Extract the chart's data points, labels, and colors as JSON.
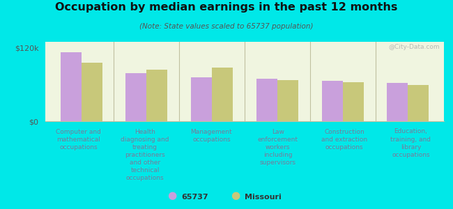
{
  "title": "Occupation by median earnings in the past 12 months",
  "subtitle": "(Note: State values scaled to 65737 population)",
  "background_outer": "#00e8e8",
  "background_inner_top": "#f8f8f0",
  "background_inner_bottom": "#e8f0d0",
  "categories": [
    "Computer and\nmathematical\noccupations",
    "Health\ndiagnosing and\ntreating\npractitioners\nand other\ntechnical\noccupations",
    "Management\noccupations",
    "Law\nenforcement\nworkers\nincluding\nsupervisors",
    "Construction\nand extraction\noccupations",
    "Education,\ntraining, and\nlibrary\noccupations"
  ],
  "values_65737": [
    113000,
    79000,
    72000,
    69000,
    66000,
    63000
  ],
  "values_missouri": [
    96000,
    84000,
    88000,
    67000,
    64000,
    59000
  ],
  "color_65737": "#c9a0dc",
  "color_missouri": "#c8c87a",
  "ylim": [
    0,
    130000
  ],
  "yticks": [
    0,
    120000
  ],
  "ytick_labels": [
    "$0",
    "$120k"
  ],
  "legend_label_65737": "65737",
  "legend_label_missouri": "Missouri",
  "watermark": "@City-Data.com",
  "label_color": "#7a7a9a",
  "divider_color": "#c0c0a0"
}
